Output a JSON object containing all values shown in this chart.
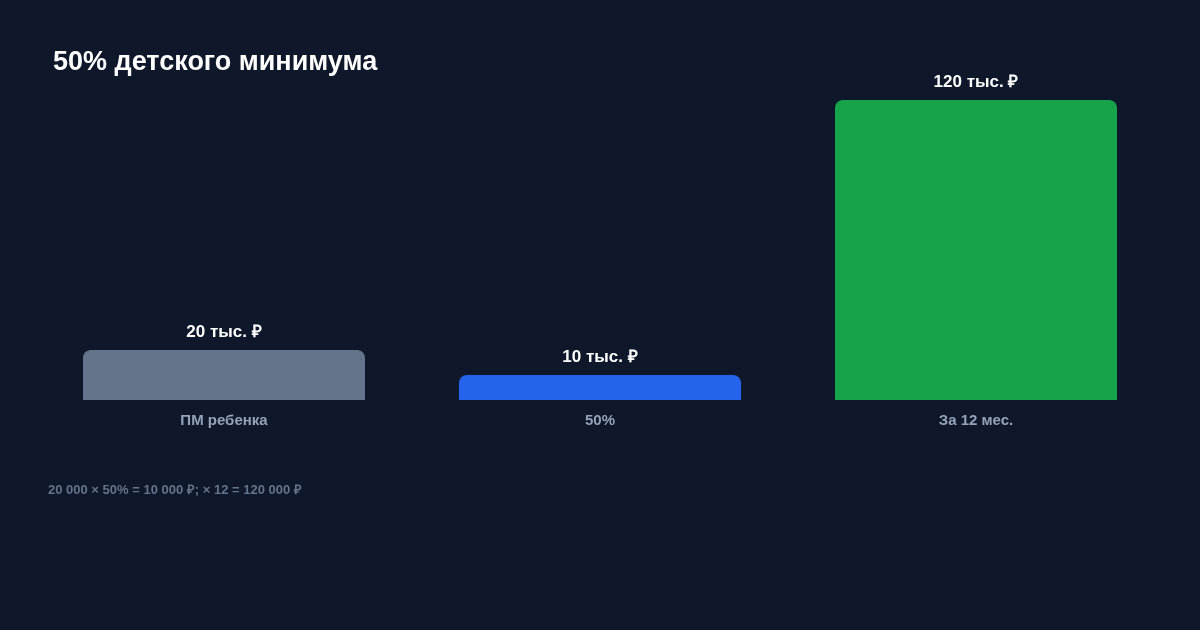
{
  "chart_data": {
    "type": "bar",
    "title": "50% детского минимума",
    "categories": [
      "ПМ ребенка",
      "50%",
      "За 12 мес."
    ],
    "values": [
      20,
      10,
      120
    ],
    "colors": [
      "#64748b",
      "#2563eb",
      "#16a34a"
    ],
    "value_labels": [
      "20 тыс. ₽",
      "10 тыс. ₽",
      "120 тыс. ₽"
    ],
    "tick_labels": "x",
    "annotations": [
      "20 000 × 50% = 10 000 ₽; × 12 = 120 000 ₽"
    ]
  }
}
